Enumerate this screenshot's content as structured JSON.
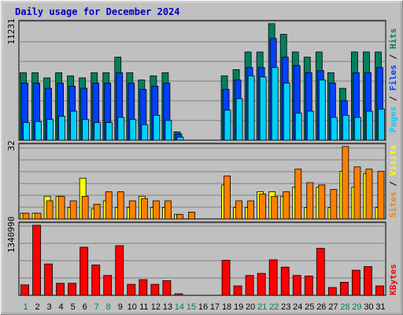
{
  "title": "Daily usage for December 2024",
  "colors": {
    "pages": "#00d0ff",
    "files": "#0040ff",
    "hits": "#008060",
    "visits": "#ffff00",
    "sites": "#ff8000",
    "kbytes": "#ff0000",
    "weekend_label": "#008040",
    "weekday_label": "#000000",
    "panel_bg": "#c0c0c0"
  },
  "chart_data": [
    {
      "type": "bar",
      "panel": "hits-files-pages",
      "scale_label": "11231",
      "legend": [
        "Pages",
        "Files",
        "Hits"
      ],
      "ylim": [
        0,
        11231
      ],
      "categories": [
        "1",
        "2",
        "3",
        "4",
        "5",
        "6",
        "7",
        "8",
        "9",
        "10",
        "11",
        "12",
        "13",
        "14",
        "15",
        "16",
        "17",
        "18",
        "19",
        "20",
        "21",
        "22",
        "23",
        "24",
        "25",
        "26",
        "27",
        "28",
        "29",
        "30",
        "31"
      ],
      "series": [
        {
          "name": "Hits",
          "values": [
            6500,
            6500,
            6000,
            6500,
            6200,
            6000,
            6500,
            6500,
            8000,
            6500,
            5800,
            6200,
            6500,
            800,
            0,
            0,
            0,
            6200,
            6800,
            8500,
            8500,
            11231,
            10200,
            8500,
            8000,
            8500,
            6500,
            5000,
            8500,
            8500,
            8500
          ]
        },
        {
          "name": "Files",
          "values": [
            5500,
            5500,
            5000,
            5500,
            5200,
            5000,
            5500,
            5500,
            6500,
            5500,
            4900,
            5200,
            5500,
            600,
            0,
            0,
            0,
            4900,
            5800,
            7000,
            7000,
            9800,
            8000,
            7200,
            6500,
            6700,
            5500,
            3800,
            6500,
            6500,
            7000
          ]
        },
        {
          "name": "Pages",
          "values": [
            1700,
            1800,
            2000,
            2300,
            2800,
            2000,
            1700,
            1700,
            2200,
            2000,
            1500,
            2400,
            1900,
            300,
            0,
            0,
            0,
            2900,
            4000,
            6200,
            6100,
            7000,
            5500,
            2600,
            2800,
            5800,
            2200,
            2400,
            2200,
            2800,
            3000
          ]
        }
      ]
    },
    {
      "type": "bar",
      "panel": "visits-sites",
      "scale_label": "32",
      "legend": [
        "Sites",
        "Visits"
      ],
      "ylim": [
        0,
        32
      ],
      "categories": [
        "1",
        "2",
        "3",
        "4",
        "5",
        "6",
        "7",
        "8",
        "9",
        "10",
        "11",
        "12",
        "13",
        "14",
        "15",
        "16",
        "17",
        "18",
        "19",
        "20",
        "21",
        "22",
        "23",
        "24",
        "25",
        "26",
        "27",
        "28",
        "29",
        "30",
        "31"
      ],
      "series": [
        {
          "name": "Visits",
          "values": [
            2.5,
            2.5,
            10,
            10,
            5,
            18,
            4.5,
            8,
            5,
            5,
            10,
            5,
            5,
            2,
            0,
            0,
            0,
            15,
            5,
            5,
            12,
            12,
            10,
            14,
            5,
            14,
            5,
            21,
            14,
            20,
            5
          ]
        },
        {
          "name": "Sites",
          "values": [
            2.5,
            2.5,
            8,
            10,
            8,
            10,
            6.5,
            12,
            12,
            8,
            9,
            8,
            8,
            2,
            3,
            0,
            0,
            19,
            8,
            8,
            11,
            10,
            12,
            22,
            16,
            15,
            13,
            32,
            23,
            22,
            21
          ]
        }
      ]
    },
    {
      "type": "bar",
      "panel": "kbytes",
      "scale_label": "1340990",
      "legend": [
        "KBytes"
      ],
      "ylim": [
        0,
        1340990
      ],
      "categories": [
        "1",
        "2",
        "3",
        "4",
        "5",
        "6",
        "7",
        "8",
        "9",
        "10",
        "11",
        "12",
        "13",
        "14",
        "15",
        "16",
        "17",
        "18",
        "19",
        "20",
        "21",
        "22",
        "23",
        "24",
        "25",
        "26",
        "27",
        "28",
        "29",
        "30",
        "31"
      ],
      "series": [
        {
          "name": "KBytes",
          "values": [
            200000,
            1340990,
            600000,
            230000,
            230000,
            920000,
            580000,
            380000,
            950000,
            210000,
            300000,
            210000,
            280000,
            30000,
            0,
            0,
            0,
            670000,
            180000,
            380000,
            420000,
            680000,
            540000,
            380000,
            370000,
            900000,
            150000,
            250000,
            480000,
            550000,
            180000
          ]
        }
      ]
    }
  ],
  "weekend_days": [
    "1",
    "7",
    "8",
    "14",
    "15",
    "21",
    "22",
    "28",
    "29"
  ]
}
